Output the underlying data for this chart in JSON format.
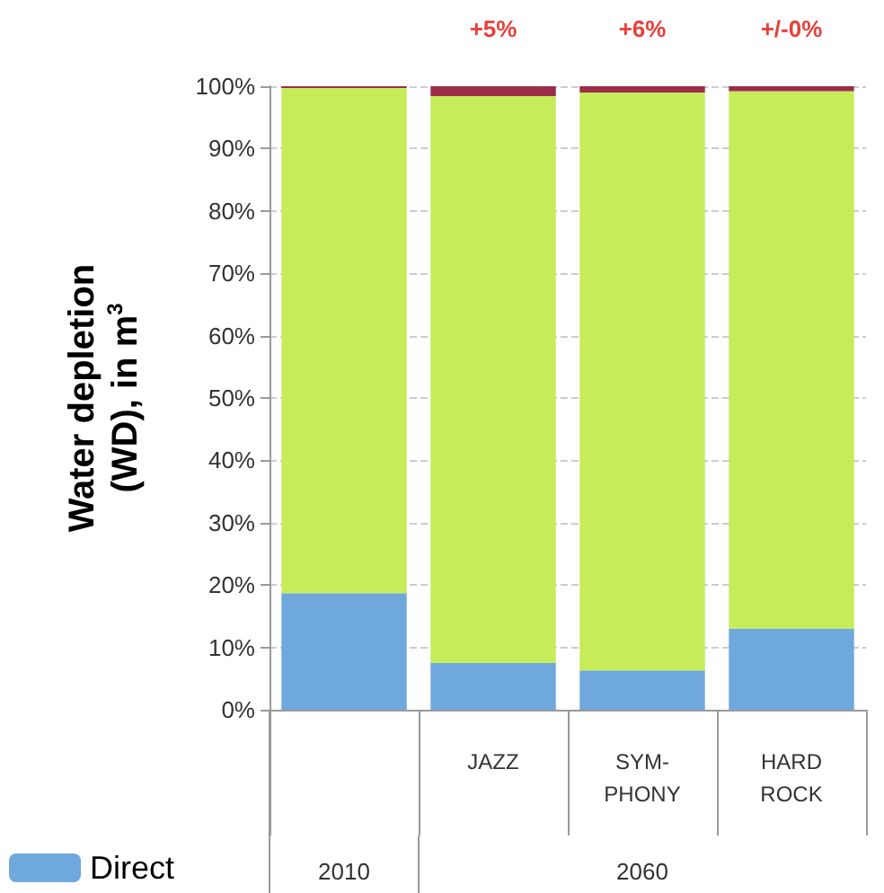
{
  "chart_data": {
    "type": "bar",
    "stacked": true,
    "ylabel": "Water depletion\n(WD), in m$^{3}$",
    "categories": [
      null,
      "JAZZ",
      "SYM-\nPHONY",
      "HARD\nROCK"
    ],
    "series": [
      {
        "name": "Direct",
        "color": "#6fa8dc",
        "values": [
          18.7,
          7.5,
          6.3,
          13
        ]
      },
      {
        "color": "#c6ec5a",
        "values": [
          81,
          90.9,
          92.7,
          86.2
        ]
      },
      {
        "color": "#9b2c4a",
        "values": [
          0.3,
          1.6,
          1,
          0.8
        ]
      }
    ],
    "ylim": [
      0,
      100
    ],
    "yticks": [
      {
        "value": 0,
        "label": "0%"
      },
      {
        "value": 10,
        "label": "10%"
      },
      {
        "value": 20,
        "label": "20%"
      },
      {
        "value": 30,
        "label": "30%"
      },
      {
        "value": 40,
        "label": "40%"
      },
      {
        "value": 50,
        "label": "50%"
      },
      {
        "value": 60,
        "label": "60%"
      },
      {
        "value": 70,
        "label": "70%"
      },
      {
        "value": 80,
        "label": "80%"
      },
      {
        "value": 90,
        "label": "90%"
      },
      {
        "value": 100,
        "label": "100%"
      }
    ],
    "grid": "y",
    "legend": "bottom left",
    "annotations": [
      "+5%",
      "+6%",
      "+/-0%",
      "2010",
      "2060"
    ]
  }
}
